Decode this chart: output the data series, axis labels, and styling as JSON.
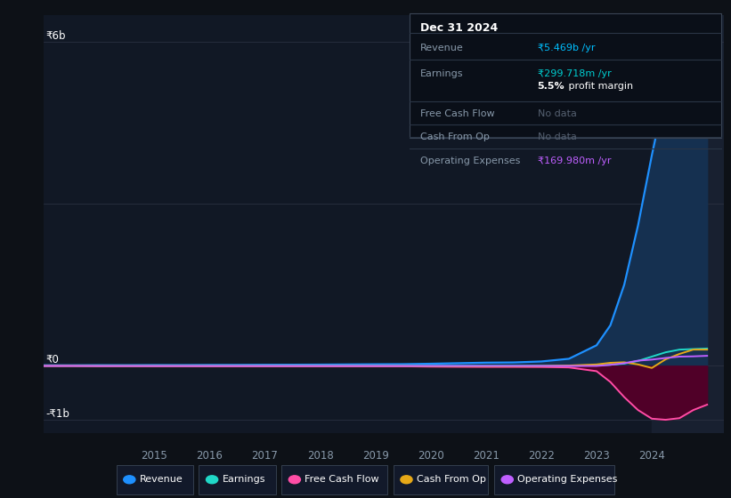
{
  "background_color": "#0d1117",
  "plot_bg_color": "#111825",
  "grid_color": "#2a3040",
  "tooltip": {
    "date": "Dec 31 2024",
    "revenue_label": "Revenue",
    "revenue_val": "₹5.469b /yr",
    "revenue_color": "#00bfff",
    "earnings_label": "Earnings",
    "earnings_val": "₹299.718m /yr",
    "earnings_color": "#00ced1",
    "profit_margin": "5.5%",
    "profit_margin_text": " profit margin",
    "free_cash_flow_label": "Free Cash Flow",
    "free_cash_flow_val": "No data",
    "cash_from_op_label": "Cash From Op",
    "cash_from_op_val": "No data",
    "operating_expenses_label": "Operating Expenses",
    "operating_expenses_val": "₹169.980m /yr",
    "operating_expenses_color": "#bf5fff"
  },
  "ylabel_top": "₹6b",
  "ylabel_zero": "₹0",
  "ylabel_bottom": "-₹1b",
  "years": [
    2013.0,
    2013.5,
    2014.0,
    2014.5,
    2015.0,
    2015.5,
    2016.0,
    2016.5,
    2017.0,
    2017.5,
    2018.0,
    2018.5,
    2019.0,
    2019.5,
    2020.0,
    2020.5,
    2021.0,
    2021.5,
    2022.0,
    2022.5,
    2023.0,
    2023.25,
    2023.5,
    2023.75,
    2024.0,
    2024.25,
    2024.5,
    2024.75,
    2025.0
  ],
  "revenue": [
    0.01,
    0.01,
    0.012,
    0.012,
    0.014,
    0.014,
    0.016,
    0.017,
    0.019,
    0.02,
    0.022,
    0.025,
    0.028,
    0.03,
    0.038,
    0.048,
    0.058,
    0.062,
    0.08,
    0.13,
    0.38,
    0.75,
    1.5,
    2.6,
    3.9,
    5.1,
    5.469,
    5.65,
    5.8
  ],
  "earnings": [
    0.0,
    0.0,
    0.0,
    0.0,
    0.0,
    0.0,
    0.0,
    0.0,
    0.0,
    0.0,
    0.0,
    0.0,
    0.0,
    0.0,
    0.0,
    0.0,
    0.0,
    0.0,
    0.0,
    0.0,
    0.008,
    0.018,
    0.04,
    0.09,
    0.17,
    0.25,
    0.2997,
    0.31,
    0.32
  ],
  "free_cash_flow": [
    0.0,
    0.0,
    -0.008,
    -0.008,
    -0.009,
    -0.009,
    -0.01,
    -0.01,
    -0.01,
    -0.01,
    -0.01,
    -0.01,
    -0.01,
    -0.01,
    -0.015,
    -0.018,
    -0.02,
    -0.02,
    -0.022,
    -0.03,
    -0.1,
    -0.3,
    -0.58,
    -0.82,
    -0.98,
    -1.0,
    -0.97,
    -0.82,
    -0.72
  ],
  "cash_from_op": [
    -0.003,
    -0.003,
    -0.003,
    -0.003,
    -0.003,
    -0.003,
    -0.003,
    -0.003,
    -0.003,
    -0.003,
    -0.003,
    -0.003,
    -0.003,
    -0.003,
    -0.008,
    -0.01,
    -0.01,
    -0.01,
    -0.005,
    0.005,
    0.025,
    0.055,
    0.065,
    0.025,
    -0.04,
    0.12,
    0.22,
    0.3,
    0.3
  ],
  "operating_expenses": [
    -0.003,
    -0.003,
    -0.003,
    -0.003,
    -0.003,
    -0.003,
    -0.003,
    -0.003,
    -0.003,
    -0.003,
    -0.003,
    -0.003,
    -0.003,
    -0.003,
    -0.003,
    -0.003,
    -0.003,
    -0.003,
    -0.003,
    -0.003,
    -0.003,
    0.018,
    0.048,
    0.095,
    0.115,
    0.145,
    0.16998,
    0.175,
    0.185
  ],
  "revenue_color": "#1e90ff",
  "earnings_color": "#20d8c8",
  "free_cash_flow_color": "#ff4da6",
  "cash_from_op_color": "#e6a817",
  "operating_expenses_color": "#bf5fff",
  "revenue_fill": "#153050",
  "free_cash_flow_fill": "#500028",
  "ylim_min": -1.25,
  "ylim_max": 6.5,
  "xlim_min": 2013.0,
  "xlim_max": 2025.3,
  "x_ticks": [
    2015,
    2016,
    2017,
    2018,
    2019,
    2020,
    2021,
    2022,
    2023,
    2024
  ],
  "highlight_x_start": 2024.0,
  "highlight_x_end": 2025.3,
  "highlight_color": "#182030",
  "legend_labels": [
    "Revenue",
    "Earnings",
    "Free Cash Flow",
    "Cash From Op",
    "Operating Expenses"
  ],
  "legend_colors": [
    "#1e90ff",
    "#20d8c8",
    "#ff4da6",
    "#e6a817",
    "#bf5fff"
  ],
  "nodata_color": "#556070"
}
